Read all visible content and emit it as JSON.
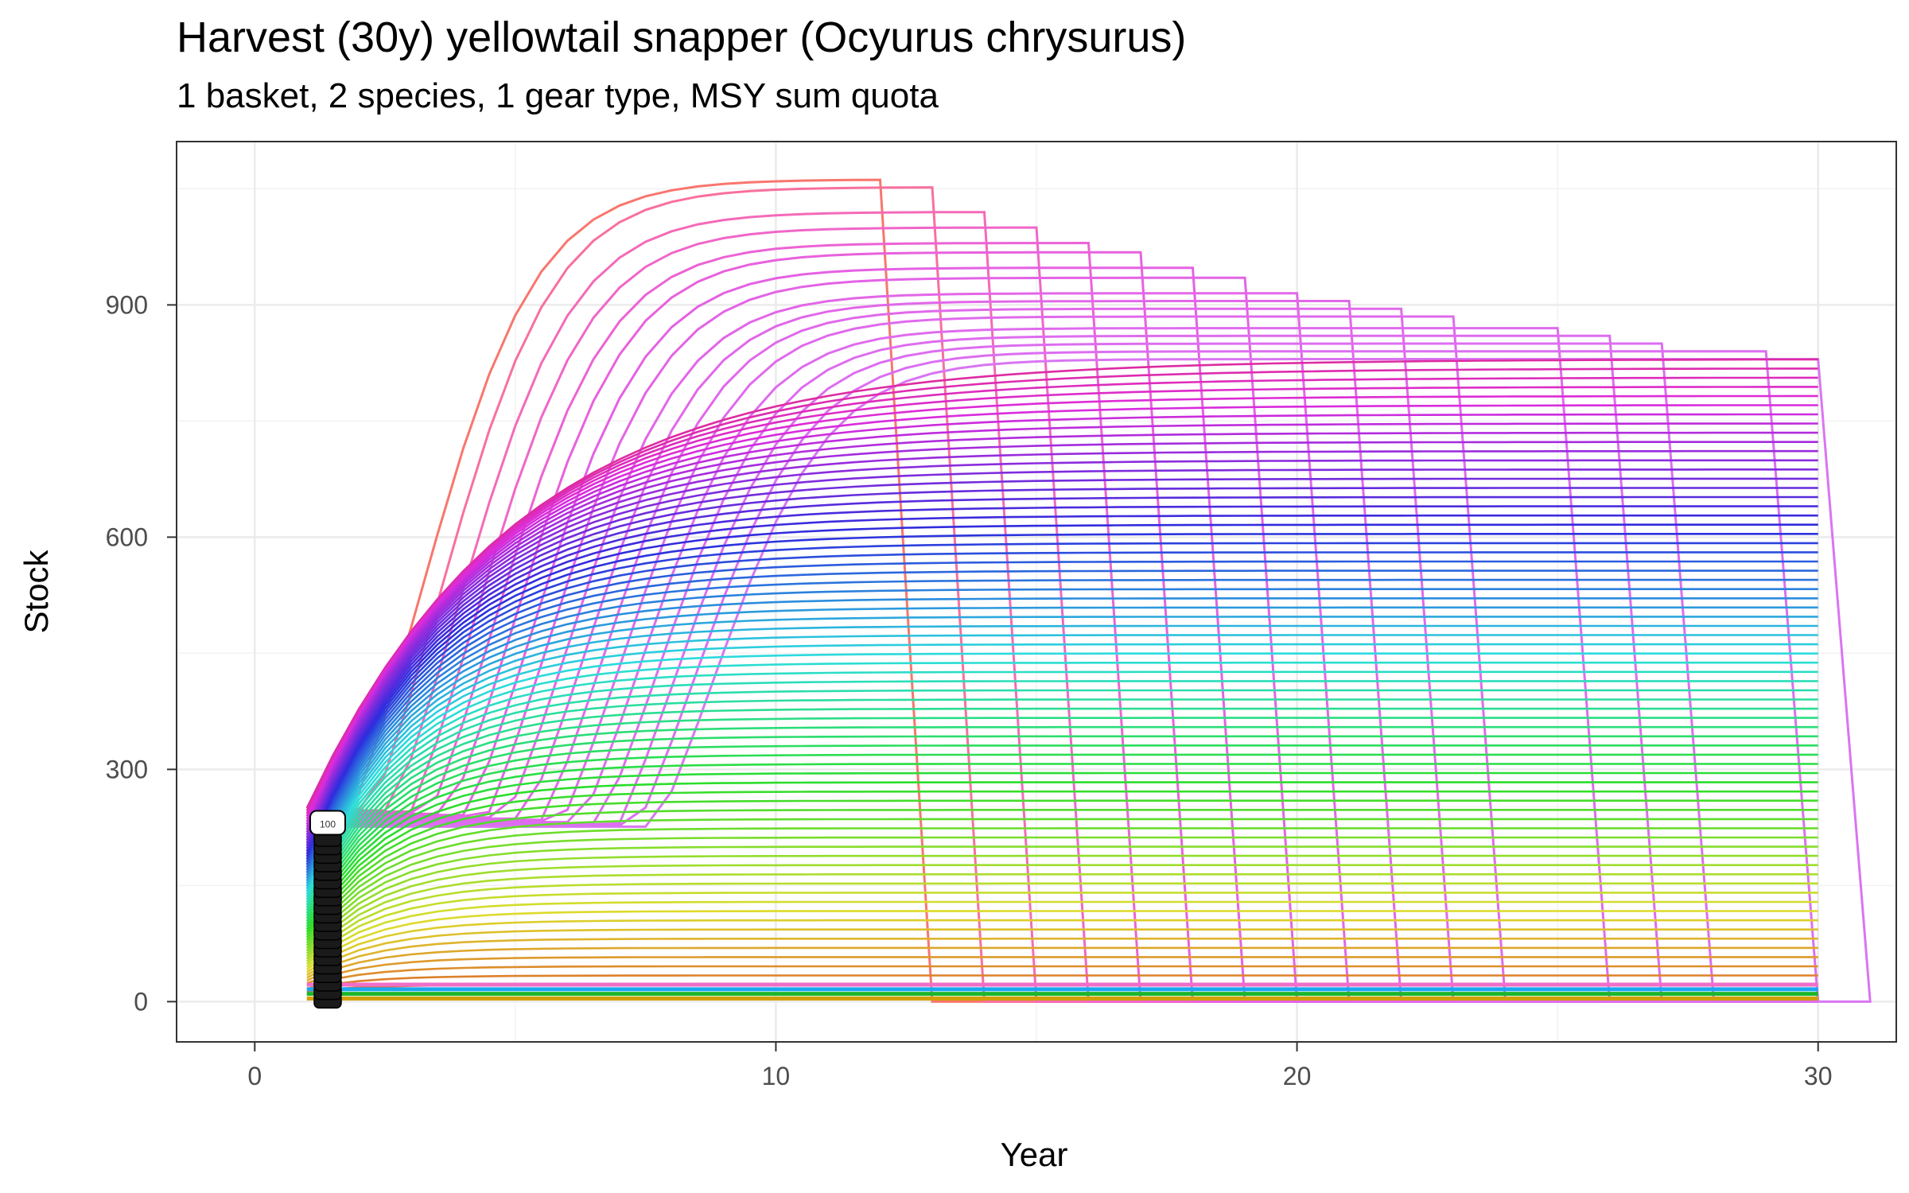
{
  "header": {
    "title": "Harvest (30y) yellowtail snapper (Ocyurus chrysurus)",
    "subtitle": "1 basket, 2 species, 1 gear type, MSY sum quota"
  },
  "chart_data": {
    "type": "line",
    "title": "Harvest (30y) yellowtail snapper (Ocyurus chrysurus)",
    "subtitle": "1 basket, 2 species, 1 gear type, MSY sum quota",
    "xlabel": "Year",
    "ylabel": "Stock",
    "xlim": [
      -1.5,
      31.5
    ],
    "ylim": [
      -52,
      1111
    ],
    "x_ticks": [
      0,
      10,
      20,
      30
    ],
    "y_ticks": [
      0,
      300,
      600,
      900
    ],
    "grid": true,
    "legend": "none",
    "label_marker": {
      "x": 1.4,
      "y": 230,
      "text": "100"
    },
    "series_families": [
      {
        "description_color": "gradient",
        "start_year": 1,
        "end_year": 30
      }
    ],
    "series": [
      {
        "end_year": 12,
        "plateau": 1062,
        "color": "#F8766D"
      },
      {
        "end_year": 13,
        "plateau": 1052,
        "color": "#F8709D"
      },
      {
        "end_year": 14,
        "plateau": 1020,
        "color": "#F46AB8"
      },
      {
        "end_year": 15,
        "plateau": 1000,
        "color": "#F066C8"
      },
      {
        "end_year": 16,
        "plateau": 980,
        "color": "#EC63D5"
      },
      {
        "end_year": 17,
        "plateau": 968,
        "color": "#E861DD"
      },
      {
        "end_year": 18,
        "plateau": 948,
        "color": "#E561E3"
      },
      {
        "end_year": 19,
        "plateau": 935,
        "color": "#E463E6"
      },
      {
        "end_year": 20,
        "plateau": 915,
        "color": "#E366E8"
      },
      {
        "end_year": 21,
        "plateau": 905,
        "color": "#E267EA"
      },
      {
        "end_year": 22,
        "plateau": 895,
        "color": "#E169EB"
      },
      {
        "end_year": 23,
        "plateau": 885,
        "color": "#E06AEC"
      },
      {
        "end_year": 25,
        "plateau": 870,
        "color": "#DF6BEE"
      },
      {
        "end_year": 26,
        "plateau": 860,
        "color": "#DE6CEF"
      },
      {
        "end_year": 27,
        "plateau": 850,
        "color": "#DD6DF0"
      },
      {
        "end_year": 29,
        "plateau": 840,
        "color": "#DC6EF1"
      },
      {
        "end_year": 30,
        "plateau": 830,
        "color": "#D975F2"
      }
    ]
  }
}
